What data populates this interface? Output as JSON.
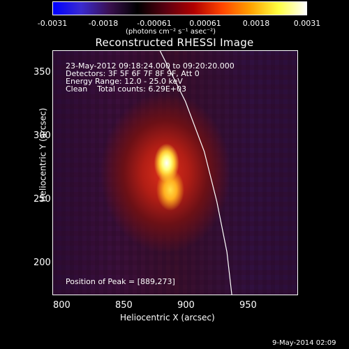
{
  "colorbar": {
    "colors": [
      "#0000ff",
      "#3a2ad0",
      "#3a1050",
      "#000000",
      "#5a0010",
      "#b00000",
      "#ff4400",
      "#ffa000",
      "#ffff40",
      "#ffffff"
    ],
    "ticks": [
      "-0.0031",
      "-0.0018",
      "-0.00061",
      "0.00061",
      "0.0018",
      "0.0031"
    ],
    "units_label": "(photons cm⁻² s⁻¹ asec⁻²)"
  },
  "title": "Reconstructed RHESSI Image",
  "info": {
    "time_range": "23-May-2012 09:18:24.000 to 09:20:20.000",
    "detectors": "Detectors: 3F 5F 6F 7F 8F 9F, Att 0",
    "energy": "Energy Range: 12.0 - 25.0 keV",
    "clean": "Clean    Total counts: 6.29E+03"
  },
  "peak_text": "Position of Peak = [889,273]",
  "axes": {
    "x_label": "Heliocentric X (arcsec)",
    "y_label": "Heliocentric Y (arcsec)",
    "x_ticks": [
      "800",
      "850",
      "900",
      "950"
    ],
    "y_ticks": [
      "350",
      "300",
      "250",
      "200"
    ]
  },
  "timestamp": "9-May-2014 02:09",
  "chart_data": {
    "type": "heatmap",
    "title": "Reconstructed RHESSI Image",
    "xlabel": "Heliocentric X (arcsec)",
    "ylabel": "Heliocentric Y (arcsec)",
    "xlim": [
      790,
      985
    ],
    "ylim": [
      175,
      370
    ],
    "colorbar_range": [
      -0.0031,
      0.0031
    ],
    "peak": {
      "x": 889,
      "y": 273
    },
    "limb_arc": [
      [
        875,
        370
      ],
      [
        895,
        330
      ],
      [
        910,
        290
      ],
      [
        920,
        250
      ],
      [
        928,
        210
      ],
      [
        932,
        175
      ]
    ]
  }
}
